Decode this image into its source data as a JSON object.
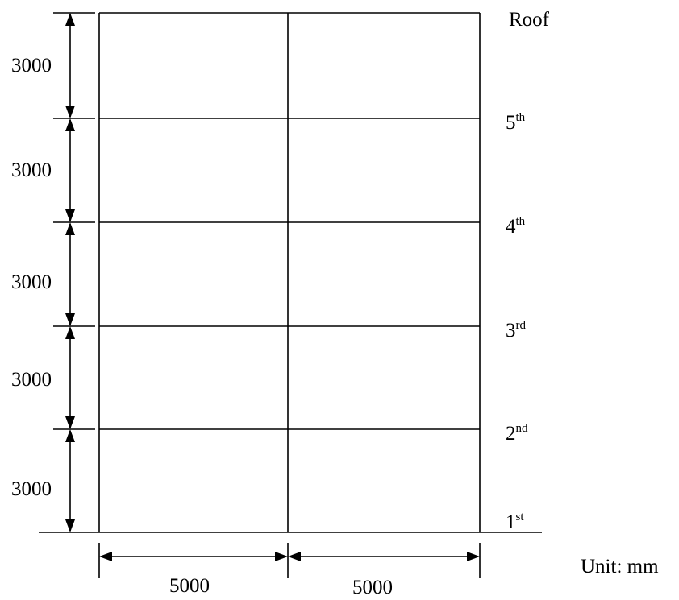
{
  "floors": [
    {
      "id": "roof",
      "base": "Roof",
      "sup": ""
    },
    {
      "id": "5th",
      "base": "5",
      "sup": "th"
    },
    {
      "id": "4th",
      "base": "4",
      "sup": "th"
    },
    {
      "id": "3rd",
      "base": "3",
      "sup": "rd"
    },
    {
      "id": "2nd",
      "base": "2",
      "sup": "nd"
    },
    {
      "id": "1st",
      "base": "1",
      "sup": "st"
    }
  ],
  "storey_heights": [
    "3000",
    "3000",
    "3000",
    "3000",
    "3000"
  ],
  "bay_widths": [
    "5000",
    "5000"
  ],
  "unit_label": "Unit: mm"
}
